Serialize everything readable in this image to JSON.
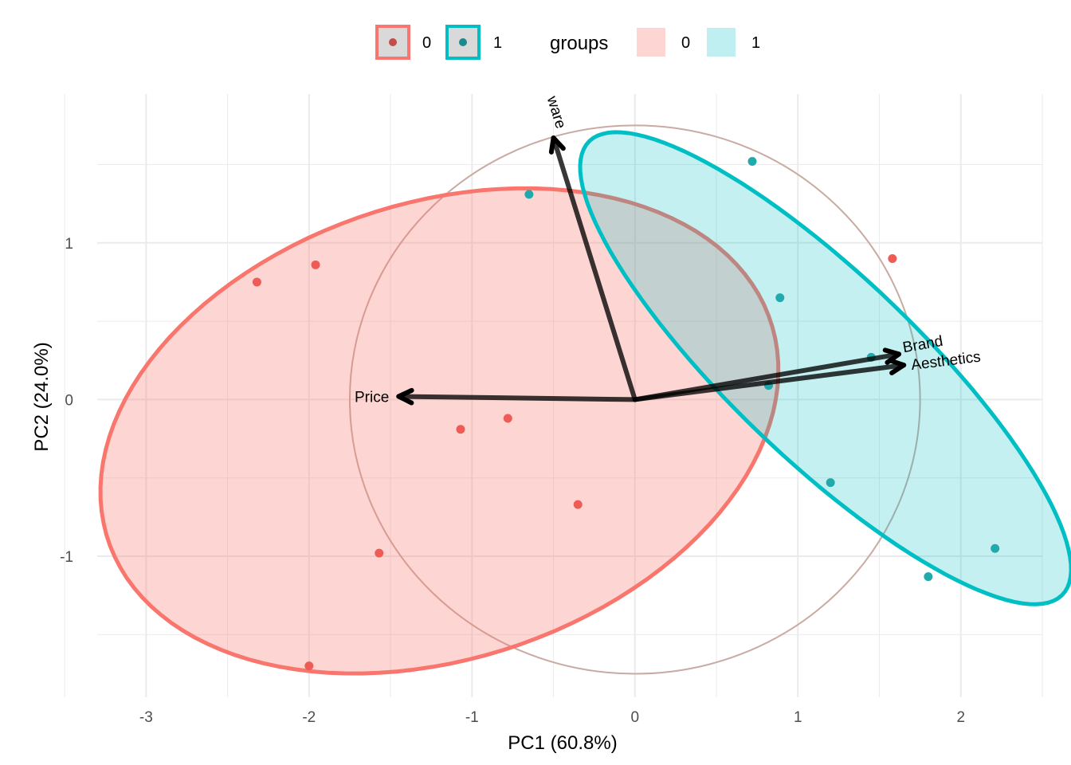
{
  "chart_data": {
    "type": "scatter",
    "subtype": "pca-biplot",
    "xlabel": "PC1 (60.8%)",
    "ylabel": "PC2 (24.0%)",
    "xlim": [
      -3.3,
      2.5
    ],
    "ylim": [
      -1.9,
      1.95
    ],
    "x_ticks": [
      -3,
      -2,
      -1,
      0,
      1,
      2
    ],
    "y_ticks": [
      -1,
      0,
      1
    ],
    "grid": true,
    "legend_position": "top",
    "colors": {
      "group_0": "#F8766D",
      "group_1": "#00BFC4",
      "circle": "#c9aba3",
      "arrow": "#000000"
    },
    "legend": {
      "point_items": [
        {
          "label": "0"
        },
        {
          "label": "1"
        }
      ],
      "fill_title": "groups",
      "fill_items": [
        {
          "label": "0"
        },
        {
          "label": "1"
        }
      ]
    },
    "series": [
      {
        "name": "0",
        "points": [
          {
            "x": -2.32,
            "y": 0.75
          },
          {
            "x": -1.96,
            "y": 0.86
          },
          {
            "x": -1.07,
            "y": -0.19
          },
          {
            "x": -0.78,
            "y": -0.12
          },
          {
            "x": -0.35,
            "y": -0.67
          },
          {
            "x": -1.57,
            "y": -0.98
          },
          {
            "x": -2.0,
            "y": -1.7
          },
          {
            "x": 1.58,
            "y": 0.9
          }
        ]
      },
      {
        "name": "1",
        "points": [
          {
            "x": -0.65,
            "y": 1.31
          },
          {
            "x": 0.72,
            "y": 1.52
          },
          {
            "x": 0.89,
            "y": 0.65
          },
          {
            "x": 0.82,
            "y": 0.09
          },
          {
            "x": 1.45,
            "y": 0.27
          },
          {
            "x": 1.2,
            "y": -0.53
          },
          {
            "x": 2.21,
            "y": -0.95
          },
          {
            "x": 1.8,
            "y": -1.13
          }
        ]
      }
    ],
    "ellipses": [
      {
        "group": "0",
        "cx": -1.2,
        "cy": -0.2,
        "rx": 2.15,
        "ry": 1.45,
        "angle_deg": 20
      },
      {
        "group": "1",
        "cx": 1.17,
        "cy": 0.2,
        "rx": 2.05,
        "ry": 0.58,
        "angle_deg": -45
      }
    ],
    "circle": {
      "cx": 0,
      "cy": 0,
      "r": 1.75
    },
    "loadings": [
      {
        "label": "Price",
        "x": -1.45,
        "y": 0.02
      },
      {
        "label": "Brand",
        "x": 1.62,
        "y": 0.29
      },
      {
        "label": "Aesthetics",
        "x": 1.65,
        "y": 0.22
      },
      {
        "label": "ware",
        "x": -0.5,
        "y": 1.67
      }
    ]
  }
}
